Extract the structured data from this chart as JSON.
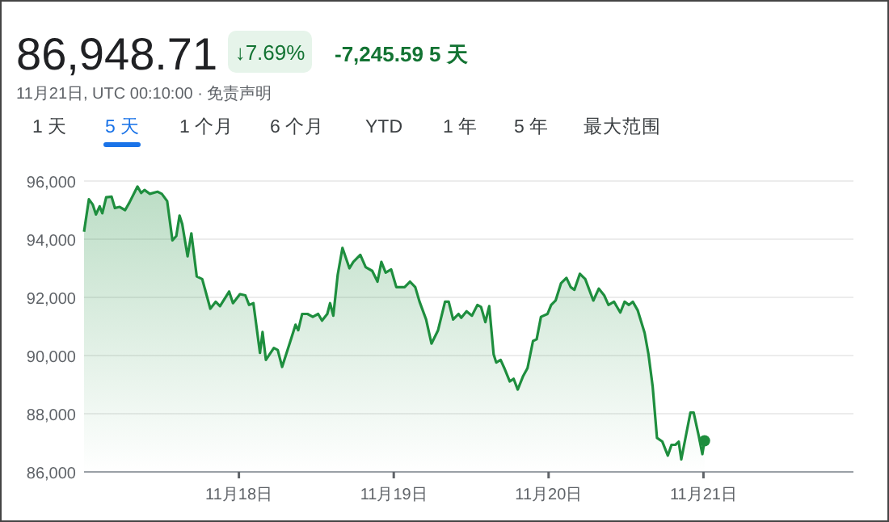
{
  "chart_data": {
    "type": "area",
    "title": "86,948.71",
    "subtitle": "11月21日, UTC 00:10:00 · 免责声明",
    "annotations": [
      "↓7.69%",
      "-7,245.59 5 天",
      "1 天",
      "5 天",
      "1 个月",
      "6 个月",
      "YTD",
      "1 年",
      "5 年",
      "最大范围"
    ],
    "xlim": [
      "--11-17",
      "--11-22"
    ],
    "xticks": [
      {
        "value": "--11-18",
        "label": "11月18日"
      },
      {
        "value": "--11-19",
        "label": "11月19日"
      },
      {
        "value": "--11-20",
        "label": "11月20日"
      },
      {
        "value": "--11-21",
        "label": "11月21日"
      }
    ],
    "ylim": [
      86000,
      96000
    ],
    "yticks": [
      {
        "value": 86000,
        "label": "86,000"
      },
      {
        "value": 88000,
        "label": "88,000"
      },
      {
        "value": 90000,
        "label": "90,000"
      },
      {
        "value": 92000,
        "label": "92,000"
      },
      {
        "value": 94000,
        "label": "94,000"
      },
      {
        "value": 96000,
        "label": "96,000"
      }
    ],
    "grid": "y",
    "series": [
      {
        "color": "#1e8e3e",
        "x": [
          "--11-17T00:00",
          "--11-17T00:45",
          "--11-17T01:21",
          "--11-17T01:51",
          "--11-17T02:25",
          "--11-17T02:50",
          "--11-17T03:26",
          "--11-17T04:16",
          "--11-17T04:47",
          "--11-17T05:31",
          "--11-17T06:22",
          "--11-17T07:02",
          "--11-17T08:17",
          "--11-17T08:51",
          "--11-17T09:22",
          "--11-17T10:12",
          "--11-17T11:23",
          "--11-17T12:03",
          "--11-17T12:53",
          "--11-17T13:42",
          "--11-17T14:18",
          "--11-17T14:48",
          "--11-17T15:13",
          "--11-17T16:03",
          "--11-17T16:38",
          "--11-17T17:28",
          "--11-17T18:19",
          "--11-17T19:34",
          "--11-17T20:24",
          "--11-17T21:04",
          "--11-17T22:29",
          "--11-17T23:05",
          "--11-18T00:10",
          "--11-18T01:00",
          "--11-18T01:35",
          "--11-18T02:15",
          "--11-18T03:16",
          "--11-18T03:40",
          "--11-18T04:11",
          "--11-18T05:25",
          "--11-18T06:01",
          "--11-18T06:42",
          "--11-18T08:07",
          "--11-18T08:47",
          "--11-18T09:12",
          "--11-18T09:48",
          "--11-18T10:38",
          "--11-18T11:27",
          "--11-18T12:17",
          "--11-18T12:53",
          "--11-18T13:42",
          "--11-18T14:08",
          "--11-18T14:38",
          "--11-18T15:19",
          "--11-18T16:03",
          "--11-18T17:08",
          "--11-18T17:44",
          "--11-18T18:49",
          "--11-18T19:39",
          "--11-18T20:40",
          "--11-18T21:29",
          "--11-18T22:05",
          "--11-18T22:45",
          "--11-18T23:36",
          "--11-19T00:24",
          "--11-19T01:41",
          "--11-19T02:31",
          "--11-19T03:20",
          "--11-19T04:00",
          "--11-19T05:01",
          "--11-19T05:51",
          "--11-19T06:52",
          "--11-19T07:57",
          "--11-19T08:31",
          "--11-19T09:12",
          "--11-19T10:02",
          "--11-19T10:28",
          "--11-19T11:17",
          "--11-19T12:07",
          "--11-19T12:58",
          "--11-19T13:32",
          "--11-19T14:12",
          "--11-19T14:48",
          "--11-19T15:29",
          "--11-19T15:53",
          "--11-19T16:34",
          "--11-19T17:08",
          "--11-19T17:59",
          "--11-19T18:35",
          "--11-19T19:13",
          "--11-19T20:04",
          "--11-19T20:44",
          "--11-19T21:35",
          "--11-19T22:09",
          "--11-19T22:49",
          "--11-19T23:50",
          "--11-20T00:24",
          "--11-20T01:05",
          "--11-20T01:55",
          "--11-20T02:46",
          "--11-20T03:26",
          "--11-20T04:00",
          "--11-20T04:51",
          "--11-20T05:41",
          "--11-20T06:56",
          "--11-20T07:47",
          "--11-20T08:37",
          "--11-20T09:17",
          "--11-20T10:08",
          "--11-20T11:07",
          "--11-20T11:47",
          "--11-20T12:27",
          "--11-20T13:03",
          "--11-20T13:48",
          "--11-20T14:53",
          "--11-20T15:29",
          "--11-20T16:08",
          "--11-20T16:48",
          "--11-20T17:38",
          "--11-20T18:29",
          "--11-20T19:03",
          "--11-20T19:39",
          "--11-20T20:10",
          "--11-20T20:34",
          "--11-20T21:10",
          "--11-20T21:59",
          "--11-20T22:29",
          "--11-20T23:15",
          "--11-20T23:50",
          "--11-21T00:10"
        ],
        "values": [
          94260,
          95370,
          95190,
          94850,
          95130,
          94890,
          95440,
          95460,
          95070,
          95110,
          95000,
          95260,
          95810,
          95590,
          95690,
          95560,
          95630,
          95560,
          95310,
          93960,
          94110,
          94810,
          94520,
          93410,
          94200,
          92720,
          92630,
          91610,
          91850,
          91700,
          92200,
          91800,
          92110,
          92070,
          91740,
          91800,
          90090,
          90810,
          89850,
          90260,
          90190,
          89610,
          90590,
          91060,
          90870,
          91430,
          91430,
          91330,
          91430,
          91200,
          91430,
          91800,
          91370,
          92780,
          93700,
          93000,
          93220,
          93460,
          93040,
          92910,
          92540,
          93220,
          92850,
          92960,
          92350,
          92350,
          92540,
          92350,
          91850,
          91240,
          90410,
          90870,
          91850,
          91850,
          91240,
          91430,
          91300,
          91520,
          91370,
          91740,
          91670,
          91150,
          91700,
          90040,
          89760,
          89850,
          89570,
          89110,
          89200,
          88830,
          89300,
          89570,
          90500,
          90560,
          91330,
          91430,
          91740,
          91890,
          92480,
          92670,
          92350,
          92260,
          92810,
          92630,
          91890,
          92300,
          92070,
          91740,
          91850,
          91480,
          91850,
          91740,
          91850,
          91560,
          90780,
          90040,
          88930,
          87170,
          87040,
          86560,
          86930,
          86930,
          87040,
          86430,
          87110,
          88040,
          88040,
          87260,
          86610,
          87070
        ]
      }
    ]
  }
}
